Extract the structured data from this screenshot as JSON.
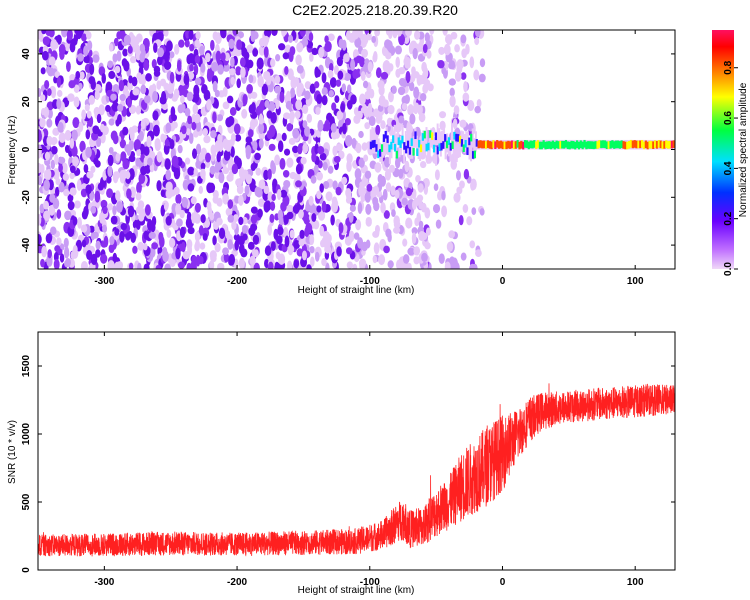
{
  "title": "C2E2.2025.218.20.39.R20",
  "chart_data": [
    {
      "type": "heatmap",
      "xlabel": "Height of straight line (km)",
      "ylabel": "Frequency (Hz)",
      "xlim": [
        -350,
        130
      ],
      "ylim": [
        -50,
        50
      ],
      "xticks": [
        -300,
        -200,
        -100,
        0,
        100
      ],
      "yticks": [
        -40,
        -20,
        0,
        20,
        40
      ],
      "colorbar": {
        "label": "Normalized spectral amplitude",
        "range": [
          0,
          0.95
        ],
        "ticks": [
          0.0,
          0.2,
          0.4,
          0.6,
          0.8
        ],
        "colormap": [
          "#f0d8f8",
          "#6a00ff",
          "#0030ff",
          "#00e0ff",
          "#00ff40",
          "#ffff00",
          "#ff3000",
          "#ff1060"
        ]
      },
      "features": {
        "noise_band_x": [
          -350,
          -55
        ],
        "noise_tail_x": [
          -55,
          -15
        ],
        "signal_line_x": [
          -100,
          130
        ],
        "signal_frequency_hz": 2,
        "signal_peak_amplitude": 0.9
      }
    },
    {
      "type": "line",
      "xlabel": "Height of straight line (km)",
      "ylabel": "SNR (10 * v/v)",
      "xlim": [
        -350,
        130
      ],
      "ylim": [
        0,
        1750
      ],
      "xticks": [
        -300,
        -200,
        -100,
        0,
        100
      ],
      "yticks": [
        0,
        500,
        1000,
        1500
      ],
      "color": "#ff2020",
      "series": [
        {
          "x": [
            -350,
            -300,
            -250,
            -200,
            -150,
            -110,
            -90,
            -75,
            -70,
            -60,
            -50,
            -40,
            -30,
            -20,
            -10,
            0,
            10,
            20,
            30,
            50,
            70,
            90,
            110,
            130
          ],
          "y": [
            180,
            185,
            195,
            190,
            200,
            210,
            260,
            380,
            300,
            320,
            420,
            500,
            620,
            700,
            780,
            860,
            980,
            1100,
            1170,
            1200,
            1220,
            1230,
            1250,
            1250
          ],
          "spread": [
            80,
            85,
            90,
            85,
            90,
            95,
            110,
            160,
            140,
            150,
            180,
            200,
            260,
            280,
            300,
            280,
            200,
            170,
            140,
            120,
            120,
            120,
            120,
            110
          ]
        }
      ]
    }
  ]
}
